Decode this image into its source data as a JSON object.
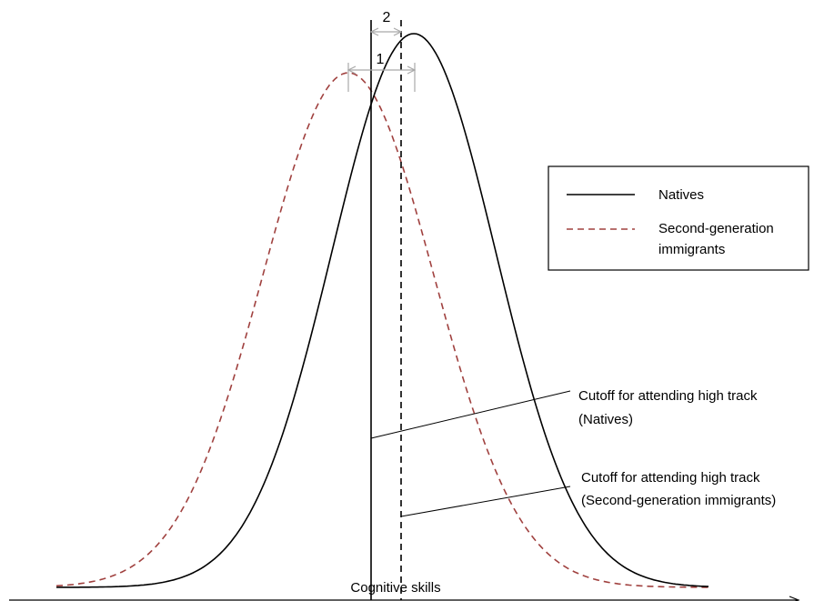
{
  "diagram": {
    "xlabel": "Cognitive skills",
    "legend": {
      "items": [
        {
          "label_lines": [
            "Natives"
          ],
          "style": "solid",
          "color": "#000000"
        },
        {
          "label_lines": [
            "Second-generation",
            "immigrants"
          ],
          "style": "dashed",
          "color": "#a0413f"
        }
      ]
    },
    "annotations": {
      "cutoff_natives": [
        "Cutoff for attending high track",
        "(Natives)"
      ],
      "cutoff_immigrants": [
        "Cutoff for attending high track",
        "(Second-generation immigrants)"
      ],
      "gap_1": "1",
      "gap_2": "2"
    },
    "colors": {
      "natives": "#000000",
      "immigrants": "#a0413f",
      "gap_arrows": "#a9a9a9"
    }
  }
}
